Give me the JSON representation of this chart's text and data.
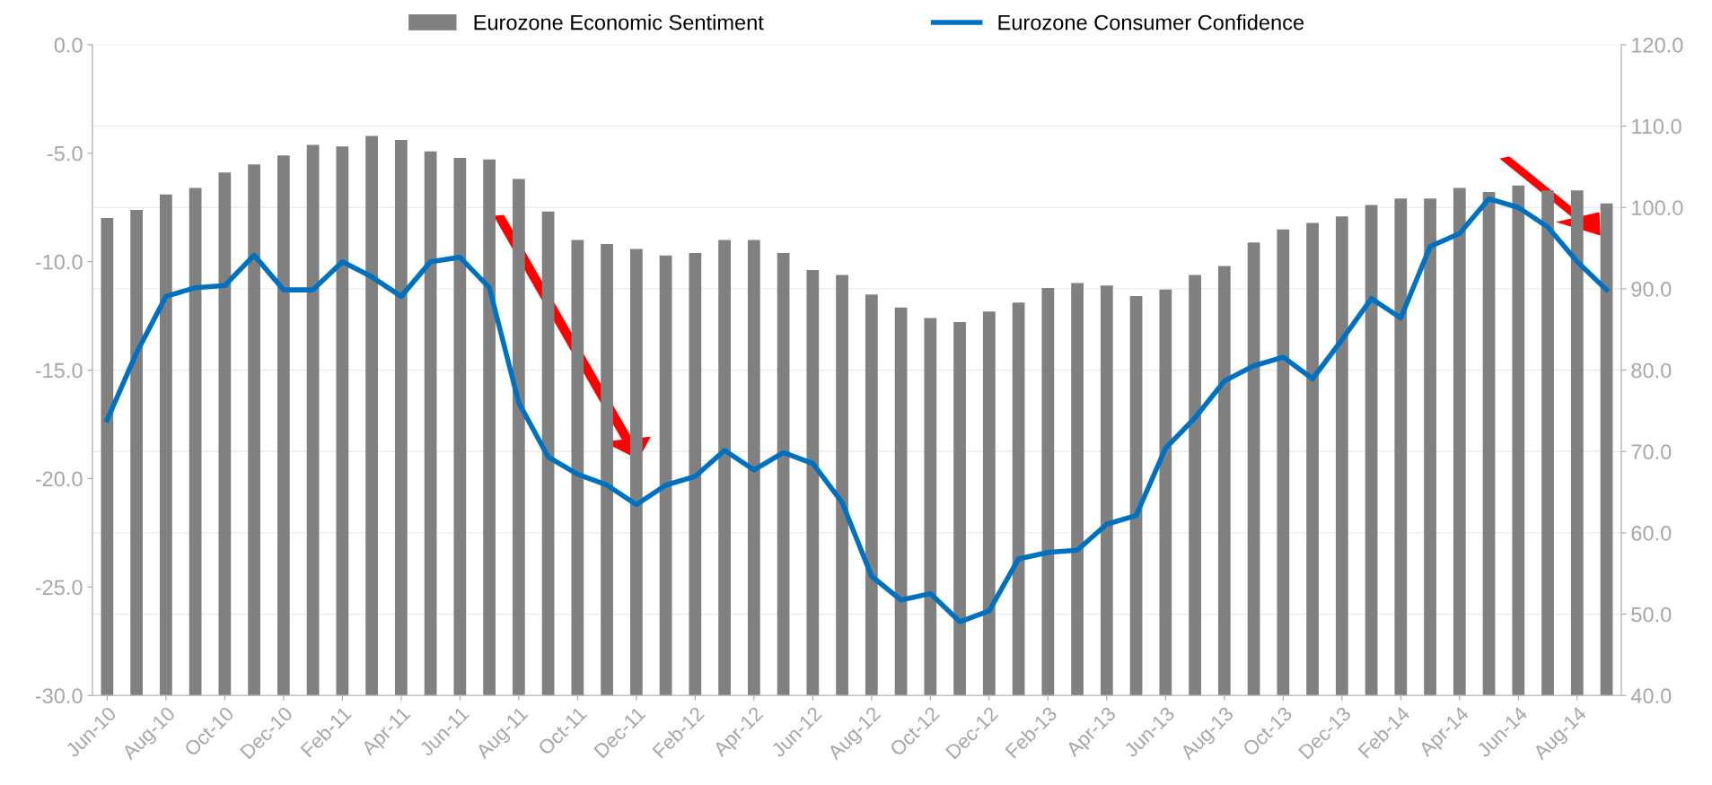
{
  "chart_data": {
    "type": "bar",
    "categories": [
      "Jun-10",
      null,
      "Aug-10",
      null,
      "Oct-10",
      null,
      "Dec-10",
      null,
      "Feb-11",
      null,
      "Apr-11",
      null,
      "Jun-11",
      null,
      "Aug-11",
      null,
      "Oct-11",
      null,
      "Dec-11",
      null,
      "Feb-12",
      null,
      "Apr-12",
      null,
      "Jun-12",
      null,
      "Aug-12",
      null,
      "Oct-12",
      null,
      "Dec-12",
      null,
      "Feb-13",
      null,
      "Apr-13",
      null,
      "Jun-13",
      null,
      "Aug-13",
      null,
      "Oct-13",
      null,
      "Dec-13",
      null,
      "Feb-14",
      null,
      "Apr-14",
      null,
      "Jun-14",
      null,
      "Aug-14",
      null
    ],
    "series": [
      {
        "name": "Eurozone Economic Sentiment",
        "axis": "y2",
        "color": "#808080",
        "values": [
          98.7,
          99.7,
          101.6,
          102.4,
          104.3,
          105.3,
          106.4,
          107.7,
          107.5,
          108.8,
          108.3,
          106.9,
          106.1,
          105.9,
          103.5,
          99.5,
          96.0,
          95.5,
          94.9,
          94.1,
          94.4,
          96.0,
          96.0,
          94.4,
          92.3,
          91.7,
          89.3,
          87.7,
          86.4,
          85.9,
          87.2,
          88.3,
          90.1,
          90.7,
          90.4,
          89.1,
          89.9,
          91.7,
          92.8,
          95.7,
          97.3,
          98.1,
          98.9,
          100.3,
          101.1,
          101.1,
          102.4,
          101.9,
          102.7,
          102.1,
          102.1,
          100.5
        ]
      },
      {
        "name": "Eurozone Consumer Confidence",
        "type": "line",
        "color": "#0070c0",
        "values": [
          -17.3,
          -14.2,
          -11.6,
          -11.2,
          -11.1,
          -9.7,
          -11.3,
          -11.3,
          -10.0,
          -10.7,
          -11.6,
          -10.0,
          -9.8,
          -11.2,
          -16.5,
          -19.0,
          -19.8,
          -20.3,
          -21.2,
          -20.3,
          -19.9,
          -18.7,
          -19.6,
          -18.8,
          -19.3,
          -21.1,
          -24.5,
          -25.6,
          -25.3,
          -26.6,
          -26.1,
          -23.7,
          -23.4,
          -23.3,
          -22.1,
          -21.7,
          -18.6,
          -17.2,
          -15.5,
          -14.8,
          -14.4,
          -15.4,
          -13.6,
          -11.7,
          -12.6,
          -9.3,
          -8.7,
          -7.1,
          -7.5,
          -8.4,
          -10.0,
          -11.3
        ]
      }
    ],
    "ylim": [
      -30,
      0
    ],
    "yticks": [
      {
        "value": -30,
        "label": "-30.0"
      },
      {
        "value": -25,
        "label": "-25.0"
      },
      {
        "value": -20,
        "label": "-20.0"
      },
      {
        "value": -15,
        "label": "-15.0"
      },
      {
        "value": -10,
        "label": "-10.0"
      },
      {
        "value": -5,
        "label": "-5.0"
      },
      {
        "value": 0,
        "label": "0.0"
      }
    ],
    "y2lim": [
      40,
      120
    ],
    "y2ticks": [
      {
        "value": 40,
        "label": "40.0"
      },
      {
        "value": 50,
        "label": "50.0"
      },
      {
        "value": 60,
        "label": "60.0"
      },
      {
        "value": 70,
        "label": "70.0"
      },
      {
        "value": 80,
        "label": "80.0"
      },
      {
        "value": 90,
        "label": "90.0"
      },
      {
        "value": 100,
        "label": "100.0"
      },
      {
        "value": 110,
        "label": "110.0"
      },
      {
        "value": 120,
        "label": "120.0"
      }
    ],
    "grid": "y",
    "legend": "top",
    "marker": "none",
    "line_style": "solid"
  }
}
